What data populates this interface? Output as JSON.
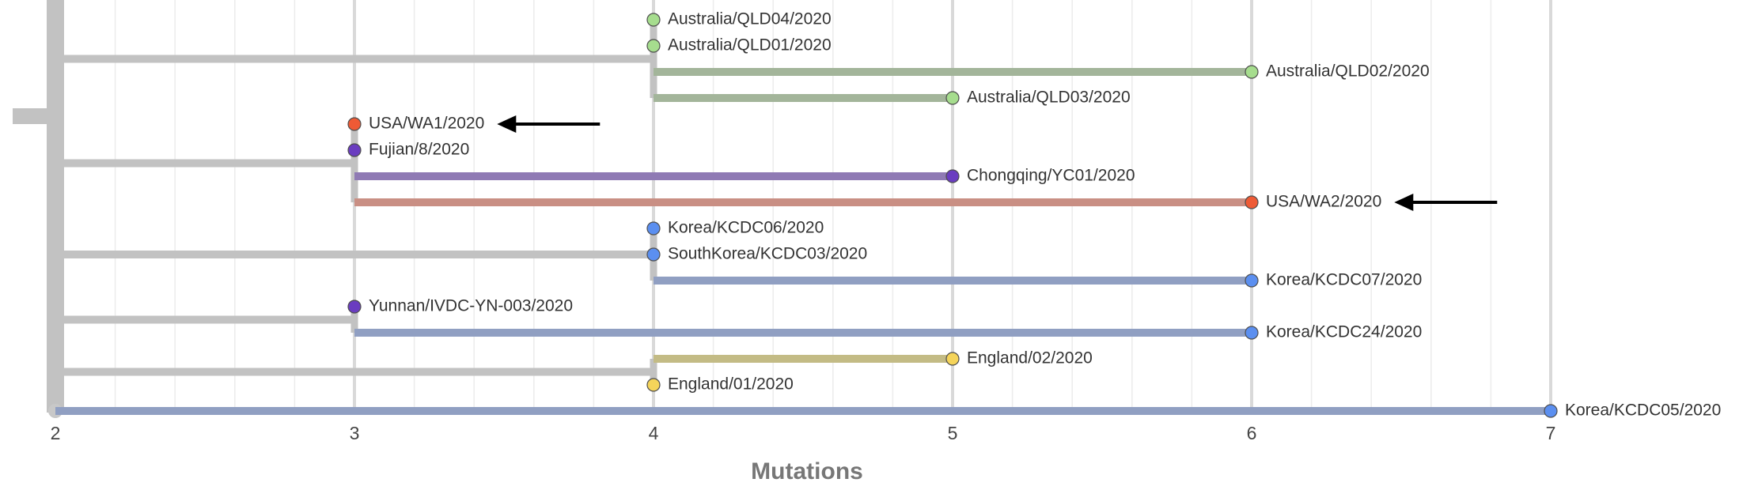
{
  "chart_data": {
    "type": "phylogenetic-tree",
    "xlabel": "Mutations",
    "xlim": [
      2,
      7
    ],
    "x_ticks": [
      "2",
      "3",
      "4",
      "5",
      "6",
      "7"
    ],
    "grid": true,
    "colors": {
      "australia": "#a6dd8e",
      "usa": "#ee5a35",
      "china": "#6a3dc0",
      "korea": "#5b8ff0",
      "england": "#f5d45a",
      "branch_base": "#c2c2c2",
      "branch_australia": "#a3b59a",
      "branch_china": "#8f7ab4",
      "branch_usa": "#c98f84",
      "branch_korea": "#909fc2",
      "branch_england": "#c3bb85",
      "arrow": "#000000"
    },
    "tips": [
      {
        "label": "Australia/QLD04/2020",
        "mutations": 4,
        "color": "#a6dd8e"
      },
      {
        "label": "Australia/QLD01/2020",
        "mutations": 4,
        "color": "#a6dd8e"
      },
      {
        "label": "Australia/QLD02/2020",
        "mutations": 6,
        "color": "#a6dd8e"
      },
      {
        "label": "Australia/QLD03/2020",
        "mutations": 5,
        "color": "#a6dd8e"
      },
      {
        "label": "USA/WA1/2020",
        "mutations": 3,
        "color": "#ee5a35",
        "arrow": true
      },
      {
        "label": "Fujian/8/2020",
        "mutations": 3,
        "color": "#6a3dc0"
      },
      {
        "label": "Chongqing/YC01/2020",
        "mutations": 5,
        "color": "#6a3dc0"
      },
      {
        "label": "USA/WA2/2020",
        "mutations": 6,
        "color": "#ee5a35",
        "arrow": true
      },
      {
        "label": "Korea/KCDC06/2020",
        "mutations": 4,
        "color": "#5b8ff0"
      },
      {
        "label": "SouthKorea/KCDC03/2020",
        "mutations": 4,
        "color": "#5b8ff0"
      },
      {
        "label": "Korea/KCDC07/2020",
        "mutations": 6,
        "color": "#5b8ff0"
      },
      {
        "label": "Yunnan/IVDC-YN-003/2020",
        "mutations": 3,
        "color": "#6a3dc0"
      },
      {
        "label": "Korea/KCDC24/2020",
        "mutations": 6,
        "color": "#5b8ff0"
      },
      {
        "label": "England/02/2020",
        "mutations": 5,
        "color": "#f5d45a"
      },
      {
        "label": "England/01/2020",
        "mutations": 4,
        "color": "#f5d45a"
      },
      {
        "label": "Korea/KCDC05/2020",
        "mutations": 7,
        "color": "#5b8ff0"
      }
    ],
    "clades": [
      {
        "node_mutations": 4,
        "tips": [
          0,
          1,
          2,
          3
        ],
        "colored_branches": [
          [
            2,
            "#a3b59a"
          ],
          [
            3,
            "#a3b59a"
          ]
        ]
      },
      {
        "node_mutations": 3,
        "tips": [
          4,
          5,
          6,
          7
        ],
        "colored_branches": [
          [
            6,
            "#8f7ab4"
          ],
          [
            7,
            "#c98f84"
          ]
        ]
      },
      {
        "node_mutations": 4,
        "tips": [
          8,
          9,
          10
        ],
        "colored_branches": [
          [
            10,
            "#909fc2"
          ]
        ]
      },
      {
        "node_mutations": 3,
        "tips": [
          11,
          12
        ],
        "colored_branches": [
          [
            12,
            "#909fc2"
          ]
        ]
      },
      {
        "node_mutations": 4,
        "tips": [
          13,
          14
        ],
        "colored_branches": [
          [
            13,
            "#c3bb85"
          ]
        ]
      }
    ],
    "root_tip": 15
  }
}
